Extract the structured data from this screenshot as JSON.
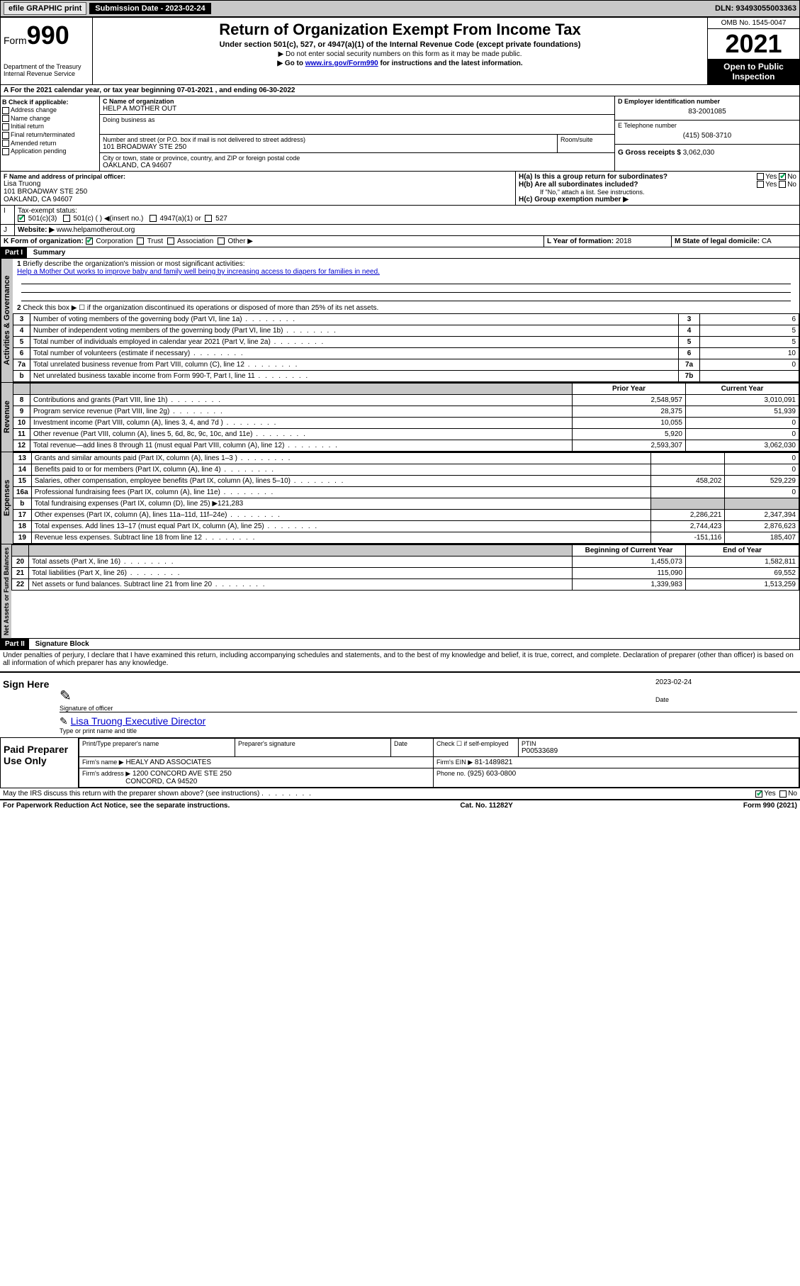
{
  "topbar": {
    "efile": "efile GRAPHIC print",
    "subdate_lbl": "Submission Date - 2023-02-24",
    "dln": "DLN: 93493055003363"
  },
  "header": {
    "form": "Form",
    "num": "990",
    "dept": "Department of the Treasury",
    "irs": "Internal Revenue Service",
    "title": "Return of Organization Exempt From Income Tax",
    "sub1": "Under section 501(c), 527, or 4947(a)(1) of the Internal Revenue Code (except private foundations)",
    "sub2": "▶ Do not enter social security numbers on this form as it may be made public.",
    "sub3": "▶ Go to www.irs.gov/Form990 for instructions and the latest information.",
    "sub3_link": "www.irs.gov/Form990",
    "sub3_pre": "▶ Go to ",
    "sub3_post": " for instructions and the latest information.",
    "omb": "OMB No. 1545-0047",
    "year": "2021",
    "inspect": "Open to Public Inspection"
  },
  "a": {
    "text": "For the 2021 calendar year, or tax year beginning 07-01-2021   , and ending 06-30-2022"
  },
  "b": {
    "lbl": "B Check if applicable:",
    "opts": [
      "Address change",
      "Name change",
      "Initial return",
      "Final return/terminated",
      "Amended return",
      "Application pending"
    ]
  },
  "c": {
    "name_lbl": "C Name of organization",
    "name": "HELP A MOTHER OUT",
    "dba": "Doing business as",
    "addr_lbl": "Number and street (or P.O. box if mail is not delivered to street address)",
    "room": "Room/suite",
    "addr": "101 BROADWAY STE 250",
    "city_lbl": "City or town, state or province, country, and ZIP or foreign postal code",
    "city": "OAKLAND, CA  94607"
  },
  "d": {
    "lbl": "D Employer identification number",
    "val": "83-2001085"
  },
  "e": {
    "lbl": "E Telephone number",
    "val": "(415) 508-3710"
  },
  "g": {
    "lbl": "G Gross receipts $",
    "val": "3,062,030"
  },
  "f": {
    "lbl": "F  Name and address of principal officer:",
    "name": "Lisa Truong",
    "addr1": "101 BROADWAY STE 250",
    "addr2": "OAKLAND, CA  94607"
  },
  "h": {
    "a": "H(a)  Is this a group return for subordinates?",
    "a_yes": "Yes",
    "a_no": "No",
    "b": "H(b)  Are all subordinates included?",
    "b_yes": "Yes",
    "b_no": "No",
    "b_note": "If \"No,\" attach a list. See instructions.",
    "c": "H(c)  Group exemption number ▶"
  },
  "i": {
    "lbl": "Tax-exempt status:",
    "o1": "501(c)(3)",
    "o2": "501(c) (  ) ◀(insert no.)",
    "o3": "4947(a)(1) or",
    "o4": "527"
  },
  "j": {
    "lbl": "Website: ▶",
    "val": "www.helpamotherout.org"
  },
  "k": {
    "lbl": "K Form of organization:",
    "o1": "Corporation",
    "o2": "Trust",
    "o3": "Association",
    "o4": "Other ▶"
  },
  "l": {
    "lbl": "L Year of formation:",
    "val": "2018"
  },
  "m": {
    "lbl": "M State of legal domicile:",
    "val": "CA"
  },
  "part1": {
    "bar": "Part I",
    "title": "Summary",
    "l1": "Briefly describe the organization's mission or most significant activities:",
    "mission": "Help a Mother Out works to improve baby and family well being by increasing access to diapers for families in need.",
    "l2": "Check this box ▶ ☐  if the organization discontinued its operations or disposed of more than 25% of its net assets.",
    "rows_gov": [
      {
        "n": "3",
        "t": "Number of voting members of the governing body (Part VI, line 1a)",
        "box": "3",
        "v": "6"
      },
      {
        "n": "4",
        "t": "Number of independent voting members of the governing body (Part VI, line 1b)",
        "box": "4",
        "v": "5"
      },
      {
        "n": "5",
        "t": "Total number of individuals employed in calendar year 2021 (Part V, line 2a)",
        "box": "5",
        "v": "5"
      },
      {
        "n": "6",
        "t": "Total number of volunteers (estimate if necessary)",
        "box": "6",
        "v": "10"
      },
      {
        "n": "7a",
        "t": "Total unrelated business revenue from Part VIII, column (C), line 12",
        "box": "7a",
        "v": "0"
      },
      {
        "n": "b",
        "t": "Net unrelated business taxable income from Form 990-T, Part I, line 11",
        "box": "7b",
        "v": ""
      }
    ],
    "col_prior": "Prior Year",
    "col_curr": "Current Year",
    "rev": [
      {
        "n": "8",
        "t": "Contributions and grants (Part VIII, line 1h)",
        "p": "2,548,957",
        "c": "3,010,091"
      },
      {
        "n": "9",
        "t": "Program service revenue (Part VIII, line 2g)",
        "p": "28,375",
        "c": "51,939"
      },
      {
        "n": "10",
        "t": "Investment income (Part VIII, column (A), lines 3, 4, and 7d )",
        "p": "10,055",
        "c": "0"
      },
      {
        "n": "11",
        "t": "Other revenue (Part VIII, column (A), lines 5, 6d, 8c, 9c, 10c, and 11e)",
        "p": "5,920",
        "c": "0"
      },
      {
        "n": "12",
        "t": "Total revenue—add lines 8 through 11 (must equal Part VIII, column (A), line 12)",
        "p": "2,593,307",
        "c": "3,062,030"
      }
    ],
    "exp": [
      {
        "n": "13",
        "t": "Grants and similar amounts paid (Part IX, column (A), lines 1–3 )",
        "p": "",
        "c": "0"
      },
      {
        "n": "14",
        "t": "Benefits paid to or for members (Part IX, column (A), line 4)",
        "p": "",
        "c": "0"
      },
      {
        "n": "15",
        "t": "Salaries, other compensation, employee benefits (Part IX, column (A), lines 5–10)",
        "p": "458,202",
        "c": "529,229"
      },
      {
        "n": "16a",
        "t": "Professional fundraising fees (Part IX, column (A), line 11e)",
        "p": "",
        "c": "0"
      },
      {
        "n": "b",
        "t": "Total fundraising expenses (Part IX, column (D), line 25) ▶121,283",
        "p": "shade",
        "c": "shade"
      },
      {
        "n": "17",
        "t": "Other expenses (Part IX, column (A), lines 11a–11d, 11f–24e)",
        "p": "2,286,221",
        "c": "2,347,394"
      },
      {
        "n": "18",
        "t": "Total expenses. Add lines 13–17 (must equal Part IX, column (A), line 25)",
        "p": "2,744,423",
        "c": "2,876,623"
      },
      {
        "n": "19",
        "t": "Revenue less expenses. Subtract line 18 from line 12",
        "p": "-151,116",
        "c": "185,407"
      }
    ],
    "col_begin": "Beginning of Current Year",
    "col_end": "End of Year",
    "net": [
      {
        "n": "20",
        "t": "Total assets (Part X, line 16)",
        "p": "1,455,073",
        "c": "1,582,811"
      },
      {
        "n": "21",
        "t": "Total liabilities (Part X, line 26)",
        "p": "115,090",
        "c": "69,552"
      },
      {
        "n": "22",
        "t": "Net assets or fund balances. Subtract line 21 from line 20",
        "p": "1,339,983",
        "c": "1,513,259"
      }
    ],
    "tab_gov": "Activities & Governance",
    "tab_rev": "Revenue",
    "tab_exp": "Expenses",
    "tab_net": "Net Assets or Fund Balances"
  },
  "part2": {
    "bar": "Part II",
    "title": "Signature Block",
    "decl": "Under penalties of perjury, I declare that I have examined this return, including accompanying schedules and statements, and to the best of my knowledge and belief, it is true, correct, and complete. Declaration of preparer (other than officer) is based on all information of which preparer has any knowledge."
  },
  "sign": {
    "here": "Sign Here",
    "sig_officer": "Signature of officer",
    "date": "Date",
    "date_val": "2023-02-24",
    "name_title": "Lisa Truong  Executive Director",
    "type_name": "Type or print name and title"
  },
  "paid": {
    "lbl": "Paid Preparer Use Only",
    "print_lbl": "Print/Type preparer's name",
    "sig_lbl": "Preparer's signature",
    "date_lbl": "Date",
    "check_lbl": "Check ☐ if self-employed",
    "ptin_lbl": "PTIN",
    "ptin": "P00533689",
    "firm_name_lbl": "Firm's name    ▶",
    "firm_name": "HEALY AND ASSOCIATES",
    "firm_ein_lbl": "Firm's EIN ▶",
    "firm_ein": "81-1489821",
    "firm_addr_lbl": "Firm's address ▶",
    "firm_addr1": "1200 CONCORD AVE STE 250",
    "firm_addr2": "CONCORD, CA  94520",
    "phone_lbl": "Phone no.",
    "phone": "(925) 603-0800"
  },
  "discuss": {
    "q": "May the IRS discuss this return with the preparer shown above? (see instructions)",
    "yes": "Yes",
    "no": "No"
  },
  "footer": {
    "l": "For Paperwork Reduction Act Notice, see the separate instructions.",
    "c": "Cat. No. 11282Y",
    "r": "Form 990 (2021)"
  }
}
